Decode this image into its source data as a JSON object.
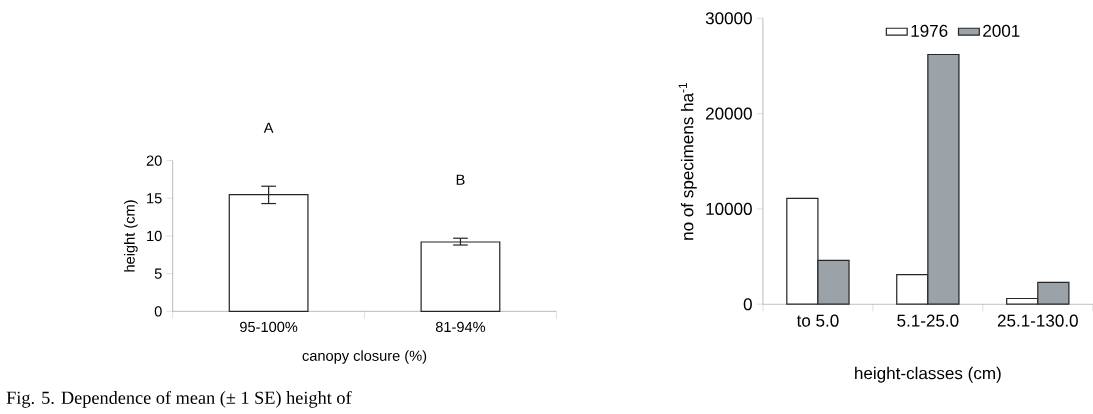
{
  "chart_data": [
    {
      "type": "bar",
      "ylabel": "height (cm)",
      "xlabel": "canopy closure (%)",
      "categories": [
        "95-100%",
        "81-94%"
      ],
      "values": [
        15.5,
        9.2
      ],
      "errors": [
        [
          14.3,
          16.6
        ],
        [
          8.8,
          9.7
        ]
      ],
      "color": "#ffffff",
      "ylim": [
        0,
        20
      ],
      "yticks": [
        0,
        5,
        10,
        15,
        20
      ],
      "annotations": [
        "A",
        "B",
        "Fig. 5. Dependence of mean (± 1 SE) height of"
      ]
    },
    {
      "type": "bar",
      "ylabel": "no of specimens ha$^{-1}$",
      "xlabel": "height-classes (cm)",
      "categories": [
        "to 5.0",
        "5.1-25.0",
        "25.1-130.0"
      ],
      "series": [
        {
          "name": "1976",
          "color": "#ffffff",
          "values": [
            11100,
            3100,
            600
          ]
        },
        {
          "name": "2001",
          "color": "#9ca3a8",
          "values": [
            4600,
            26200,
            2300
          ]
        }
      ],
      "ylim": [
        0,
        30000
      ],
      "yticks": [
        0,
        10000,
        20000,
        30000
      ],
      "legend": "top"
    }
  ]
}
